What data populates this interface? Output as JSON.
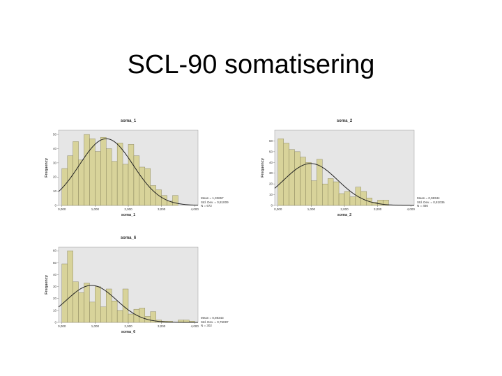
{
  "slide": {
    "title": "SCL-90 somatisering"
  },
  "colors": {
    "bar_fill": "#d8d39a",
    "bar_stroke": "#7a7650",
    "plot_bg": "#e6e6e6",
    "curve": "#222222"
  },
  "chart_data": [
    {
      "type": "bar",
      "title": "soma_1",
      "xlabel": "soma_1",
      "ylabel": "Frequency",
      "xlim": [
        -0.1,
        4.1
      ],
      "ylim": [
        0,
        53
      ],
      "yticks": [
        0,
        10,
        20,
        30,
        40,
        50
      ],
      "xticks": [
        "0,000",
        "1,000",
        "2,000",
        "3,000",
        "4,000"
      ],
      "bin_width": 0.1667,
      "bin_starts": [
        0,
        0.1667,
        0.3333,
        0.5,
        0.6667,
        0.8333,
        1.0,
        1.1667,
        1.3333,
        1.5,
        1.6667,
        1.8333,
        2.0,
        2.1667,
        2.3333,
        2.5,
        2.6667,
        2.8333,
        3.0,
        3.1667,
        3.3333
      ],
      "values": [
        26,
        35,
        45,
        32,
        50,
        47,
        38,
        48,
        40,
        31,
        44,
        29,
        43,
        35,
        27,
        26,
        14,
        11,
        7,
        3,
        7
      ],
      "normal_curve": {
        "mean": 1.33657,
        "sd": 0.81,
        "n": 672,
        "peak": 47
      },
      "stats": [
        "Mean = 1,33657",
        "Std. Dev. = 0,81009",
        "N = 672"
      ]
    },
    {
      "type": "bar",
      "title": "soma_2",
      "xlabel": "soma_2",
      "ylabel": "Frequency",
      "xlim": [
        -0.1,
        4.1
      ],
      "ylim": [
        0,
        70
      ],
      "yticks": [
        0,
        10,
        20,
        30,
        40,
        50,
        60
      ],
      "xticks": [
        "0,000",
        "1,000",
        "2,000",
        "3,000",
        "4,000"
      ],
      "bin_width": 0.1667,
      "bin_starts": [
        0,
        0.1667,
        0.3333,
        0.5,
        0.6667,
        0.8333,
        1.0,
        1.1667,
        1.3333,
        1.5,
        1.6667,
        1.8333,
        2.0,
        2.1667,
        2.3333,
        2.5,
        2.6667,
        2.8333,
        3.0,
        3.1667
      ],
      "values": [
        62,
        58,
        52,
        50,
        45,
        40,
        23,
        43,
        20,
        25,
        22,
        11,
        13,
        8,
        17,
        13,
        7,
        3,
        5,
        5
      ],
      "normal_curve": {
        "mean": 0.98344,
        "sd": 0.81,
        "n": 466,
        "peak": 39
      },
      "stats": [
        "Mean = 0,98344",
        "Std. Dev. = 0,81036",
        "N = 466"
      ]
    },
    {
      "type": "bar",
      "title": "soma_6",
      "xlabel": "soma_6",
      "ylabel": "Frequency",
      "xlim": [
        -0.1,
        4.1
      ],
      "ylim": [
        0,
        63
      ],
      "yticks": [
        0,
        10,
        20,
        30,
        40,
        50,
        60
      ],
      "xticks": [
        "0,000",
        "1,000",
        "2,000",
        "3,000",
        "4,000"
      ],
      "bin_width": 0.1667,
      "bin_starts": [
        0,
        0.1667,
        0.3333,
        0.5,
        0.6667,
        0.8333,
        1.0,
        1.1667,
        1.3333,
        1.5,
        1.6667,
        1.8333,
        2.0,
        2.1667,
        2.3333,
        2.5,
        2.6667,
        2.8333,
        3.0,
        3.1667,
        3.3333,
        3.5,
        3.6667,
        3.8333
      ],
      "values": [
        49,
        60,
        34,
        25,
        33,
        17,
        30,
        13,
        28,
        18,
        10,
        28,
        7,
        11,
        12,
        5,
        9,
        2,
        1,
        1,
        0,
        2,
        2,
        1
      ],
      "normal_curve": {
        "mean": 0.89343,
        "sd": 0.75,
        "n": 302,
        "peak": 31
      },
      "stats": [
        "Mean = 0,89343",
        "Std. Dev. = 0,75087",
        "N = 302"
      ]
    }
  ]
}
